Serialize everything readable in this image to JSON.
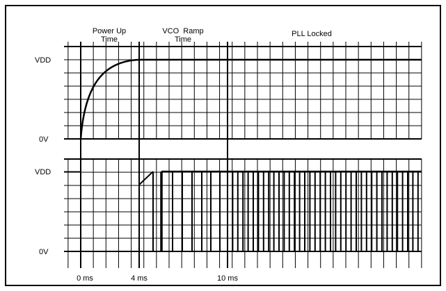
{
  "phases": {
    "power_up": [
      "Power Up",
      "Time"
    ],
    "vco_ramp": [
      "VCO  Ramp",
      "Time"
    ],
    "pll_locked": "PLL Locked"
  },
  "upper_panel": {
    "top_label": "VDD",
    "bottom_label": "0V"
  },
  "lower_panel": {
    "top_label": "VDD",
    "bottom_label": "0V"
  },
  "time_axis": {
    "labels": [
      "0 ms",
      "4 ms",
      "10 ms"
    ]
  },
  "colors": {
    "line": "#000000",
    "background": "#ffffff"
  }
}
